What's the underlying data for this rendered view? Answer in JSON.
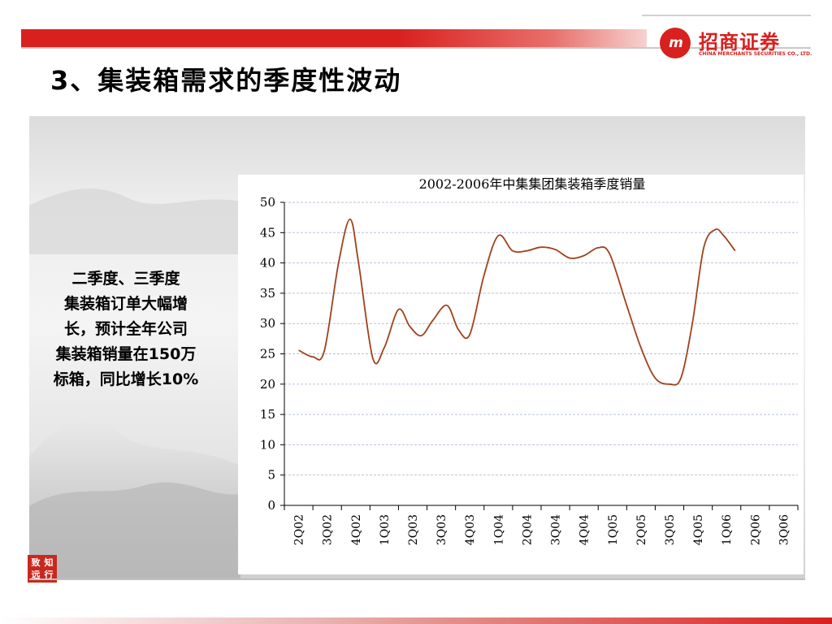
{
  "header": {
    "title": "3、集装箱需求的季度性波动",
    "brand_mark": "m",
    "brand_name": "招商证券",
    "brand_sub": "CHINA MERCHANTS SECURITIES CO., LTD."
  },
  "sidebar": {
    "lines": [
      "二季度、三季度",
      "集装箱订单大幅增",
      "长，预计全年公司",
      "集装箱销量在150万",
      "标箱，同比增长10%"
    ]
  },
  "seal": {
    "chars": [
      "致",
      "知",
      "远",
      "行"
    ]
  },
  "colors": {
    "accent": "#d8201e",
    "line": "#a0411c",
    "grid": "#b9c2d9"
  },
  "chart_data": {
    "type": "line",
    "title": "2002-2006年中集集团集装箱季度销量",
    "xlabel": "",
    "ylabel": "",
    "ylim": [
      0,
      50
    ],
    "yticks": [
      "0",
      "5",
      "10",
      "15",
      "20",
      "25",
      "30",
      "35",
      "40",
      "45",
      "50"
    ],
    "categories": [
      "2Q02",
      "3Q02",
      "4Q02",
      "1Q03",
      "2Q03",
      "3Q03",
      "4Q03",
      "1Q04",
      "2Q04",
      "3Q04",
      "4Q04",
      "1Q05",
      "2Q05",
      "3Q05",
      "4Q05",
      "1Q06",
      "2Q06",
      "3Q06"
    ],
    "grid": true,
    "legend": "none",
    "series": [
      {
        "values": [
          [
            0.0,
            25.6
          ],
          [
            0.5,
            24.5
          ],
          [
            0.9,
            25.5
          ],
          [
            1.4,
            40.0
          ],
          [
            1.8,
            47.2
          ],
          [
            2.1,
            40.0
          ],
          [
            2.6,
            24.3
          ],
          [
            3.0,
            26.0
          ],
          [
            3.5,
            32.3
          ],
          [
            3.9,
            29.5
          ],
          [
            4.3,
            28.0
          ],
          [
            4.7,
            30.5
          ],
          [
            5.2,
            33.0
          ],
          [
            5.6,
            29.0
          ],
          [
            6.0,
            28.2
          ],
          [
            6.5,
            38.0
          ],
          [
            7.0,
            44.5
          ],
          [
            7.5,
            42.0
          ],
          [
            8.0,
            42.0
          ],
          [
            8.5,
            42.6
          ],
          [
            9.0,
            42.2
          ],
          [
            9.5,
            40.8
          ],
          [
            10.0,
            41.2
          ],
          [
            10.5,
            42.5
          ],
          [
            10.9,
            41.5
          ],
          [
            11.5,
            33.0
          ],
          [
            12.0,
            26.0
          ],
          [
            12.5,
            21.0
          ],
          [
            13.0,
            20.0
          ],
          [
            13.4,
            21.0
          ],
          [
            13.8,
            30.0
          ],
          [
            14.2,
            42.5
          ],
          [
            14.6,
            45.5
          ],
          [
            14.9,
            44.5
          ],
          [
            15.3,
            42.0
          ]
        ]
      }
    ]
  }
}
